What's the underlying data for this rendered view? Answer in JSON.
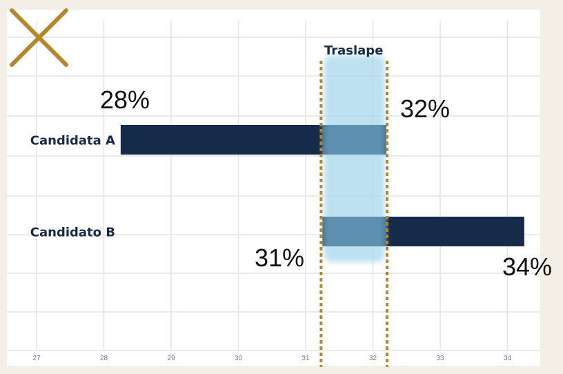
{
  "chart_data": {
    "type": "bar",
    "subtype": "range",
    "categories": [
      "Candidata A",
      "Candidato B"
    ],
    "ranges": [
      {
        "category": "Candidata A",
        "low": 28.25,
        "high": 32.2,
        "low_label": "28%",
        "high_label": "32%"
      },
      {
        "category": "Candidato B",
        "low": 31.25,
        "high": 34.25,
        "low_label": "31%",
        "high_label": "34%"
      }
    ],
    "overlap": {
      "label": "Traslape",
      "start": 31.25,
      "end": 32.2
    },
    "xticks": [
      "27",
      "28",
      "29",
      "30",
      "31",
      "32",
      "33",
      "34"
    ],
    "xlim": [
      26.5,
      34.5
    ],
    "grid": true,
    "colors": {
      "bar": "#162a4a",
      "overlap": "#a8d8ec",
      "overlap_line": "#b8862a",
      "cross": "#b8862a",
      "background": "#f3efe6",
      "panel": "#ffffff"
    },
    "icon": "close-icon"
  }
}
